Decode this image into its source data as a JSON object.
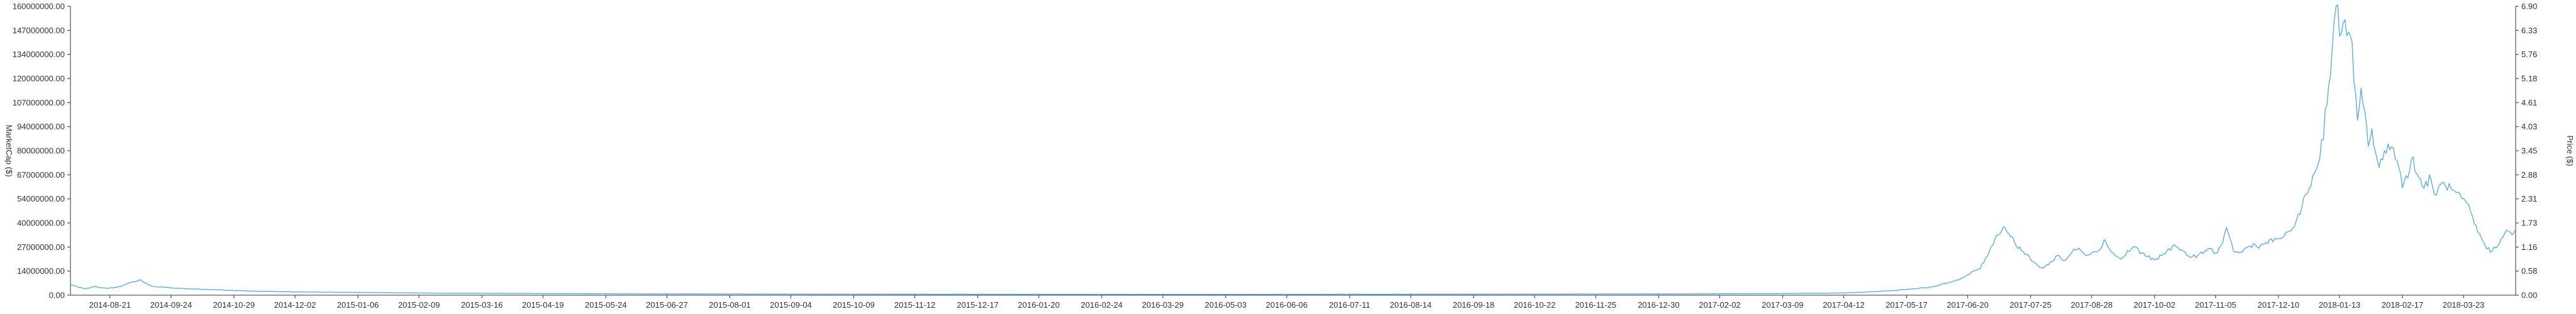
{
  "chart_data": {
    "type": "line",
    "title": "",
    "xlabel": "",
    "ylabel_left": "MarketCap ($)",
    "ylabel_right": "Price ($)",
    "ylim_left": [
      0,
      160000000
    ],
    "ylim_right": [
      0,
      6.9
    ],
    "x_range": [
      "2014-07-30",
      "2018-04-21"
    ],
    "y_left_ticks": [
      "0.00",
      "14000000.00",
      "27000000.00",
      "40000000.00",
      "54000000.00",
      "67000000.00",
      "80000000.00",
      "94000000.00",
      "107000000.00",
      "120000000.00",
      "134000000.00",
      "147000000.00",
      "160000000.00"
    ],
    "y_right_ticks": [
      "0.00",
      "0.58",
      "1.16",
      "1.73",
      "2.31",
      "2.88",
      "3.45",
      "4.03",
      "4.61",
      "5.18",
      "5.76",
      "6.33",
      "6.90"
    ],
    "x_ticks": [
      "2014-08-21",
      "2014-09-24",
      "2014-10-29",
      "2014-12-02",
      "2015-01-06",
      "2015-02-09",
      "2015-03-16",
      "2015-04-19",
      "2015-05-24",
      "2015-06-27",
      "2015-08-01",
      "2015-09-04",
      "2015-10-09",
      "2015-11-12",
      "2015-12-17",
      "2016-01-20",
      "2016-02-24",
      "2016-03-29",
      "2016-05-03",
      "2016-06-06",
      "2016-07-11",
      "2016-08-14",
      "2016-09-18",
      "2016-10-22",
      "2016-11-25",
      "2016-12-30",
      "2017-02-02",
      "2017-03-09",
      "2017-04-12",
      "2017-05-17",
      "2017-06-20",
      "2017-07-25",
      "2017-08-28",
      "2017-10-02",
      "2017-11-05",
      "2017-12-10",
      "2018-01-13",
      "2018-02-17",
      "2018-03-23"
    ],
    "grid": false,
    "colors": {
      "line": "#5aaee0",
      "axis": "#333333",
      "text": "#333333"
    },
    "series": [
      {
        "y_axis": "left",
        "x": [
          "2014-07-30",
          "2014-08-03",
          "2014-08-07",
          "2014-08-10",
          "2014-08-13",
          "2014-08-16",
          "2014-08-19",
          "2014-08-21",
          "2014-08-24",
          "2014-08-27",
          "2014-08-30",
          "2014-09-02",
          "2014-09-05",
          "2014-09-07",
          "2014-09-10",
          "2014-09-13",
          "2014-09-17",
          "2014-09-20",
          "2014-09-24",
          "2014-09-29",
          "2014-10-05",
          "2014-10-12",
          "2014-10-20",
          "2014-10-29",
          "2014-11-10",
          "2014-11-22",
          "2014-12-02",
          "2014-12-15",
          "2015-01-06",
          "2015-02-09",
          "2015-03-16",
          "2015-04-19",
          "2015-05-24",
          "2015-06-27",
          "2015-08-01",
          "2015-09-04",
          "2015-10-09",
          "2015-11-12",
          "2015-12-17",
          "2016-01-20",
          "2016-02-24",
          "2016-03-29",
          "2016-05-03",
          "2016-06-06",
          "2016-07-11",
          "2016-08-14",
          "2016-09-18",
          "2016-10-22",
          "2016-11-25",
          "2016-12-30",
          "2017-02-02",
          "2017-03-09",
          "2017-04-12",
          "2017-04-26",
          "2017-05-10",
          "2017-05-17",
          "2017-05-24",
          "2017-05-31",
          "2017-06-06",
          "2017-06-11",
          "2017-06-16",
          "2017-06-20",
          "2017-06-23",
          "2017-06-27",
          "2017-06-30",
          "2017-07-03",
          "2017-07-07",
          "2017-07-10",
          "2017-07-14",
          "2017-07-17",
          "2017-07-21",
          "2017-07-25",
          "2017-07-28",
          "2017-08-01",
          "2017-08-05",
          "2017-08-09",
          "2017-08-13",
          "2017-08-17",
          "2017-08-21",
          "2017-08-24",
          "2017-08-28",
          "2017-09-01",
          "2017-09-04",
          "2017-09-07",
          "2017-09-10",
          "2017-09-14",
          "2017-09-17",
          "2017-09-21",
          "2017-09-25",
          "2017-09-29",
          "2017-10-02",
          "2017-10-06",
          "2017-10-10",
          "2017-10-14",
          "2017-10-18",
          "2017-10-22",
          "2017-10-26",
          "2017-10-30",
          "2017-11-02",
          "2017-11-05",
          "2017-11-08",
          "2017-11-11",
          "2017-11-15",
          "2017-11-18",
          "2017-11-22",
          "2017-11-26",
          "2017-11-30",
          "2017-12-03",
          "2017-12-06",
          "2017-12-10",
          "2017-12-13",
          "2017-12-16",
          "2017-12-19",
          "2017-12-22",
          "2017-12-25",
          "2017-12-28",
          "2017-12-31",
          "2018-01-02",
          "2018-01-04",
          "2018-01-06",
          "2018-01-08",
          "2018-01-10",
          "2018-01-12",
          "2018-01-13",
          "2018-01-15",
          "2018-01-17",
          "2018-01-19",
          "2018-01-21",
          "2018-01-23",
          "2018-01-25",
          "2018-01-27",
          "2018-01-29",
          "2018-01-31",
          "2018-02-02",
          "2018-02-04",
          "2018-02-06",
          "2018-02-09",
          "2018-02-12",
          "2018-02-15",
          "2018-02-17",
          "2018-02-20",
          "2018-02-23",
          "2018-02-26",
          "2018-03-01",
          "2018-03-04",
          "2018-03-07",
          "2018-03-10",
          "2018-03-13",
          "2018-03-16",
          "2018-03-19",
          "2018-03-23",
          "2018-03-26",
          "2018-03-29",
          "2018-04-01",
          "2018-04-04",
          "2018-04-07",
          "2018-04-10",
          "2018-04-13",
          "2018-04-16",
          "2018-04-19",
          "2018-04-21"
        ],
        "y": [
          6000000,
          4500000,
          3500000,
          4200000,
          5000000,
          4000000,
          3800000,
          4000000,
          4300000,
          5000000,
          6000000,
          7000000,
          8000000,
          8500000,
          6500000,
          5000000,
          4500000,
          4500000,
          4000000,
          3800000,
          3500000,
          3200000,
          3000000,
          2600000,
          2200000,
          2000000,
          1800000,
          1700000,
          1500000,
          1200000,
          1000000,
          900000,
          800000,
          700000,
          650000,
          600000,
          550000,
          520000,
          500000,
          500000,
          480000,
          460000,
          450000,
          480000,
          500000,
          520000,
          550000,
          600000,
          650000,
          700000,
          800000,
          900000,
          1200000,
          1800000,
          2600000,
          3200000,
          3800000,
          4500000,
          6000000,
          7500000,
          9000000,
          11000000,
          13000000,
          15000000,
          20000000,
          27000000,
          34000000,
          38000000,
          33000000,
          28000000,
          24000000,
          20000000,
          17000000,
          15000000,
          18000000,
          22000000,
          19000000,
          24000000,
          26000000,
          22000000,
          24000000,
          25000000,
          30000000,
          26000000,
          22000000,
          20000000,
          24000000,
          27000000,
          23000000,
          21000000,
          19000000,
          22000000,
          25000000,
          28000000,
          24000000,
          21000000,
          22000000,
          24000000,
          26000000,
          23000000,
          27000000,
          36000000,
          25000000,
          23000000,
          26000000,
          28000000,
          27000000,
          29000000,
          30000000,
          31000000,
          33000000,
          34000000,
          40000000,
          45000000,
          55000000,
          62000000,
          70000000,
          78000000,
          90000000,
          110000000,
          125000000,
          150000000,
          157000000,
          145000000,
          155000000,
          140000000,
          150000000,
          120000000,
          95000000,
          110000000,
          100000000,
          85000000,
          90000000,
          80000000,
          70000000,
          75000000,
          85000000,
          80000000,
          70000000,
          62000000,
          68000000,
          75000000,
          65000000,
          60000000,
          64000000,
          56000000,
          60000000,
          62000000,
          58000000,
          56000000,
          52000000,
          48000000,
          40000000,
          33000000,
          28000000,
          24000000,
          27000000,
          31000000,
          35000000,
          34000000,
          36000000
        ]
      }
    ]
  }
}
